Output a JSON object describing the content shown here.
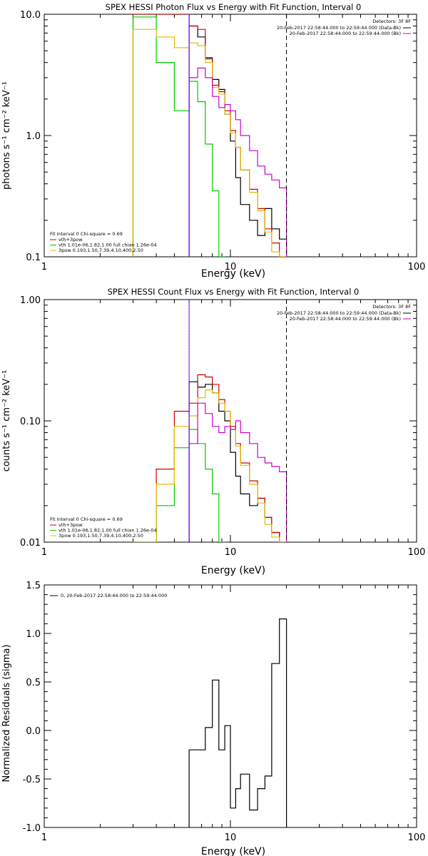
{
  "chart_data": [
    {
      "type": "line",
      "title": "SPEX HESSI Photon Flux vs Energy with Fit Function, Interval 0",
      "xlabel": "Energy (keV)",
      "ylabel": "photons s⁻¹ cm⁻² keV⁻¹",
      "xscale": "log",
      "yscale": "log",
      "xlim": [
        1,
        100
      ],
      "ylim": [
        0.1,
        10
      ],
      "xticks": [
        "1",
        "10",
        "100"
      ],
      "yticks": [
        "0.1",
        "1.0",
        "10.0"
      ],
      "vlines": [
        {
          "x": 6.0,
          "style": "dotted",
          "color": "#000000"
        },
        {
          "x": 6.0,
          "style": "solid",
          "color": "#8000ff"
        },
        {
          "x": 20.0,
          "style": "dashed",
          "color": "#000000"
        }
      ],
      "legend_tr": {
        "header": "Detectors: 3F 8F",
        "entries": [
          {
            "text": "20-Feb-2017 22:58:44.000 to 22:59:44.000 (Data-Bk)",
            "color": "#000000"
          },
          {
            "text": "20-Feb-2017 22:58:44.000 to 22:59:44.000 (Bk)",
            "color": "#cc00cc"
          }
        ]
      },
      "legend_bl": {
        "header": "Fit Interval 0   Chi-square = 0.69",
        "entries": [
          {
            "text": "vth+3pow",
            "color": "#cc0000"
          },
          {
            "text": "vth 1.01e-06,1.82,1.00  full chian 1.26e-04",
            "color": "#00cc00"
          },
          {
            "text": "3pow 0.193,1.50,7.39,4.10,400,2.50",
            "color": "#e0c000"
          }
        ]
      },
      "series": [
        {
          "name": "(Data-Bk)",
          "color": "#000000",
          "from": 6.0,
          "edges": [
            6.0,
            6.67,
            7.33,
            8.0,
            8.67,
            9.33,
            10.0,
            10.67,
            11.33,
            12.67,
            14.0,
            15.33,
            16.67,
            18.33,
            20.0
          ],
          "values": [
            8.0,
            6.5,
            4.3,
            2.9,
            2.4,
            1.5,
            0.9,
            0.45,
            0.27,
            0.2,
            0.15,
            0.25,
            0.17,
            0.14
          ]
        },
        {
          "name": "vth+3pow",
          "color": "#cc0000",
          "from": 3.0,
          "edges": [
            3.0,
            4.0,
            5.0,
            6.0,
            6.67,
            7.33,
            8.0,
            8.67,
            9.33,
            10.0,
            10.67,
            11.33,
            12.67,
            14.0,
            15.33,
            16.67,
            18.33,
            20.0
          ],
          "values": [
            10.0,
            10.0,
            10.0,
            8.0,
            7.5,
            4.4,
            2.6,
            2.3,
            1.6,
            1.1,
            0.8,
            0.52,
            0.36,
            0.25,
            0.17,
            0.13,
            0.1
          ]
        },
        {
          "name": "vth",
          "color": "#00cc00",
          "from": 3.0,
          "edges": [
            3.0,
            4.0,
            5.0,
            6.0,
            6.67,
            7.33,
            8.0,
            8.67,
            9.33
          ],
          "values": [
            9.5,
            4.0,
            1.6,
            2.8,
            1.9,
            0.85,
            0.35,
            0.1
          ]
        },
        {
          "name": "3pow",
          "color": "#e0c000",
          "from": 3.0,
          "edges": [
            3.0,
            4.0,
            5.0,
            6.0,
            6.67,
            7.33,
            8.0,
            8.67,
            9.33,
            10.0,
            10.67,
            11.33,
            12.67,
            14.0,
            15.33,
            16.67,
            18.33,
            20.0
          ],
          "values": [
            7.5,
            6.5,
            5.3,
            5.8,
            5.5,
            4.0,
            2.5,
            2.2,
            1.5,
            1.05,
            0.8,
            0.52,
            0.34,
            0.24,
            0.16,
            0.11,
            0.08
          ]
        },
        {
          "name": "(Bk)",
          "color": "#cc00cc",
          "from": 6.0,
          "edges": [
            6.0,
            6.67,
            7.33,
            8.0,
            8.67,
            9.33,
            10.0,
            10.67,
            11.33,
            12.67,
            14.0,
            15.33,
            16.67,
            18.33,
            20.0
          ],
          "values": [
            3.0,
            3.6,
            3.0,
            2.1,
            1.7,
            1.8,
            1.6,
            1.35,
            1.0,
            0.75,
            0.56,
            0.48,
            0.43,
            0.37
          ]
        }
      ]
    },
    {
      "type": "line",
      "title": "SPEX HESSI Count Flux vs Energy with Fit Function, Interval 0",
      "xlabel": "Energy (keV)",
      "ylabel": "counts s⁻¹ cm⁻² keV⁻¹",
      "xscale": "log",
      "yscale": "log",
      "xlim": [
        1,
        100
      ],
      "ylim": [
        0.01,
        1.0
      ],
      "xticks": [
        "1",
        "10",
        "100"
      ],
      "yticks": [
        "0.01",
        "0.10",
        "1.00"
      ],
      "vlines": [
        {
          "x": 6.0,
          "style": "dotted",
          "color": "#000000"
        },
        {
          "x": 6.0,
          "style": "solid",
          "color": "#8000ff"
        },
        {
          "x": 20.0,
          "style": "dashed",
          "color": "#000000"
        }
      ],
      "legend_tr": {
        "header": "Detectors: 3F 8F",
        "entries": [
          {
            "text": "20-Feb-2017 22:58:44.000 to 22:59:44.000 (Data-Bk)",
            "color": "#000000"
          },
          {
            "text": "20-Feb-2017 22:58:44.000 to 22:59:44.000 (Bk)",
            "color": "#cc00cc"
          }
        ]
      },
      "legend_bl": {
        "header": "Fit Interval 0   Chi-square = 0.69",
        "entries": [
          {
            "text": "vth+3pow",
            "color": "#cc0000"
          },
          {
            "text": "vth 1.01e-06,1.82,1.00  full chian 1.26e-04",
            "color": "#00cc00"
          },
          {
            "text": "3pow 0.193,1.50,7.39,4.10,400,2.50",
            "color": "#e0c000"
          }
        ]
      },
      "series": [
        {
          "name": "(Data-Bk)",
          "color": "#000000",
          "from": 6.0,
          "edges": [
            6.0,
            6.67,
            7.33,
            8.0,
            8.67,
            9.33,
            10.0,
            10.67,
            11.33,
            12.67,
            14.0,
            15.33,
            16.67,
            18.33,
            20.0
          ],
          "values": [
            0.21,
            0.19,
            0.2,
            0.17,
            0.12,
            0.1,
            0.055,
            0.035,
            0.025,
            0.02,
            0.023,
            0.016,
            0.012,
            0.01
          ]
        },
        {
          "name": "vth+3pow",
          "color": "#cc0000",
          "from": 3.0,
          "edges": [
            3.0,
            4.0,
            5.0,
            6.0,
            6.67,
            7.33,
            8.0,
            8.67,
            9.33,
            10.0,
            10.67,
            11.33,
            12.67,
            14.0,
            15.33,
            16.67,
            18.33,
            20.0
          ],
          "values": [
            0.01,
            0.04,
            0.12,
            0.14,
            0.24,
            0.23,
            0.2,
            0.15,
            0.12,
            0.09,
            0.065,
            0.045,
            0.032,
            0.023,
            0.016,
            0.012,
            0.01
          ]
        },
        {
          "name": "vth",
          "color": "#00cc00",
          "from": 3.0,
          "edges": [
            3.0,
            4.0,
            5.0,
            6.0,
            6.67,
            7.33,
            8.0,
            8.67,
            9.33
          ],
          "values": [
            0.01,
            0.02,
            0.06,
            0.085,
            0.065,
            0.04,
            0.025,
            0.01
          ]
        },
        {
          "name": "3pow",
          "color": "#e0c000",
          "from": 3.0,
          "edges": [
            3.0,
            4.0,
            5.0,
            6.0,
            6.67,
            7.33,
            8.0,
            8.67,
            9.33,
            10.0,
            10.67,
            11.33,
            12.67,
            14.0,
            15.33,
            16.67,
            18.33,
            20.0
          ],
          "values": [
            0.01,
            0.03,
            0.09,
            0.11,
            0.155,
            0.18,
            0.17,
            0.14,
            0.12,
            0.085,
            0.062,
            0.043,
            0.03,
            0.021,
            0.014,
            0.011,
            0.01
          ]
        },
        {
          "name": "(Bk)",
          "color": "#cc00cc",
          "from": 6.0,
          "edges": [
            6.0,
            6.67,
            7.33,
            8.0,
            8.67,
            9.33,
            10.0,
            10.67,
            11.33,
            12.67,
            14.0,
            15.33,
            16.67,
            18.33,
            20.0
          ],
          "values": [
            0.065,
            0.14,
            0.115,
            0.09,
            0.08,
            0.09,
            0.085,
            0.1,
            0.08,
            0.065,
            0.05,
            0.045,
            0.042,
            0.038
          ]
        }
      ]
    },
    {
      "type": "line",
      "title": "",
      "xlabel": "Energy (keV)",
      "ylabel": "Normalized Residuals (sigma)",
      "xscale": "log",
      "yscale": "linear",
      "xlim": [
        1,
        100
      ],
      "ylim": [
        -1.0,
        1.5
      ],
      "xticks": [
        "1",
        "10",
        "100"
      ],
      "yticks": [
        "-1.0",
        "-0.5",
        "0.0",
        "0.5",
        "1.0",
        "1.5"
      ],
      "legend_tl": {
        "entries": [
          {
            "text": "0, 20-Feb-2017 22:58:44.000 to 22:59:44.000",
            "color": "#000000"
          }
        ]
      },
      "series": [
        {
          "name": "0, 20-Feb-2017 22:58:44.000 to 22:59:44.000",
          "color": "#000000",
          "from": 6.0,
          "baseline": -1.0,
          "edges": [
            6.0,
            6.67,
            7.33,
            8.0,
            8.67,
            9.33,
            10.0,
            10.67,
            11.33,
            12.67,
            14.0,
            15.33,
            16.67,
            18.33,
            20.0
          ],
          "values": [
            -0.2,
            -0.2,
            0.03,
            0.52,
            -0.2,
            0.05,
            -0.8,
            -0.6,
            -0.45,
            -0.82,
            -0.6,
            -0.47,
            0.69,
            1.15
          ]
        }
      ]
    }
  ]
}
